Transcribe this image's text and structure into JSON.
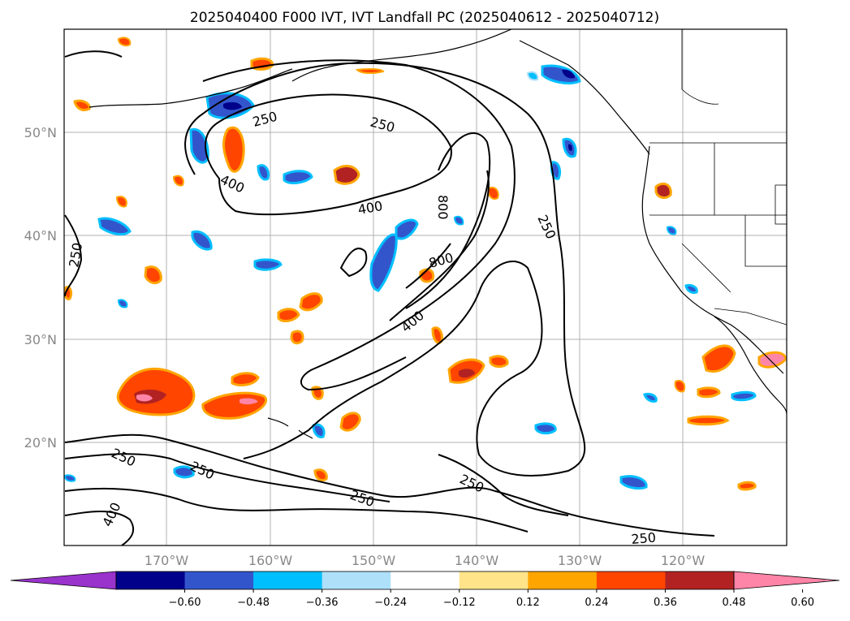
{
  "title": "2025040400 F000 IVT, IVT Landfall PC (2025040612 - 2025040712)",
  "lat_labels": [
    "50°N",
    "40°N",
    "30°N",
    "20°N"
  ],
  "lon_labels": [
    "170°W",
    "160°W",
    "150°W",
    "140°W",
    "130°W",
    "120°W"
  ],
  "contour_levels": [
    "250",
    "400",
    "800"
  ],
  "contour_labels": [
    {
      "text": "250"
    },
    {
      "text": "250"
    },
    {
      "text": "400"
    },
    {
      "text": "400"
    },
    {
      "text": "800"
    },
    {
      "text": "800"
    },
    {
      "text": "250"
    },
    {
      "text": "250"
    },
    {
      "text": "400"
    },
    {
      "text": "250"
    },
    {
      "text": "250"
    },
    {
      "text": "250"
    },
    {
      "text": "250"
    },
    {
      "text": "400"
    }
  ],
  "colorbar": {
    "ticks": [
      "−0.60",
      "−0.48",
      "−0.36",
      "−0.24",
      "−0.12",
      "0.12",
      "0.24",
      "0.36",
      "0.48",
      "0.60"
    ],
    "colors": [
      "#9933cc",
      "#00008b",
      "#3355cc",
      "#00bfff",
      "#aee0fa",
      "#ffffff",
      "#ffe48a",
      "#ffa500",
      "#ff4500",
      "#b22222",
      "#ff85a8"
    ]
  }
}
